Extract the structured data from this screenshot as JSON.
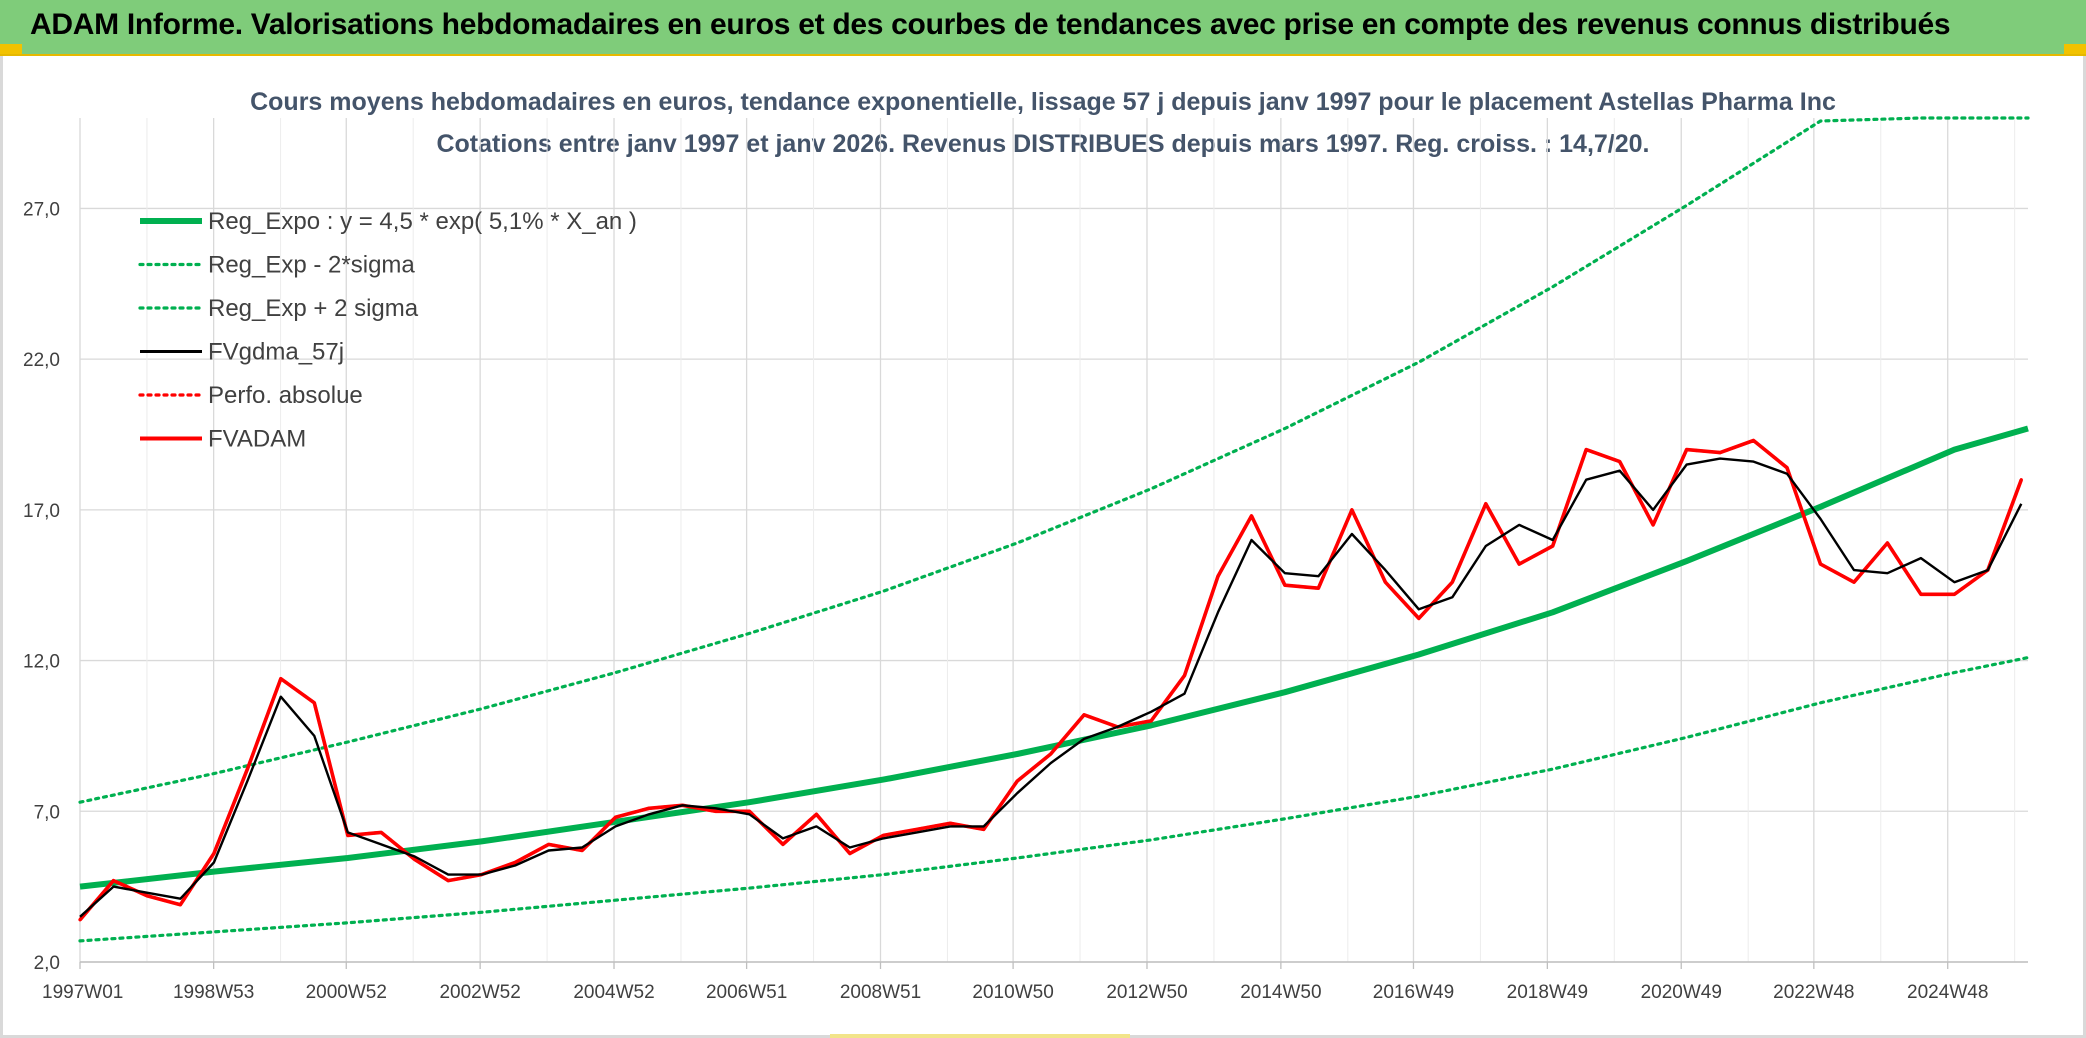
{
  "header": {
    "title": "ADAM Informe. Valorisations hebdomadaires en euros et des courbes de tendances avec prise en compte des revenus connus distribués"
  },
  "chart_data": {
    "type": "line",
    "title": "Cours moyens hebdomadaires en euros, tendance exponentielle, lissage 57 j depuis janv 1997 pour le placement Astellas Pharma Inc",
    "subtitle": "Cotations entre janv 1997 et janv 2026. Revenus DISTRIBUES depuis mars 1997. Reg. croiss. : 14,7/20.",
    "xlabel": "",
    "ylabel": "",
    "x_ticks": [
      "1997W01",
      "1998W53",
      "2000W52",
      "2002W52",
      "2004W52",
      "2006W51",
      "2008W51",
      "2010W50",
      "2012W50",
      "2014W50",
      "2016W49",
      "2018W49",
      "2020W49",
      "2022W48",
      "2024W48"
    ],
    "y_ticks": [
      "2,0",
      "7,0",
      "12,0",
      "17,0",
      "22,0",
      "27,0"
    ],
    "ylim": [
      2,
      30
    ],
    "xlim": [
      1997.0,
      2026.1
    ],
    "grid": true,
    "legend_position": "top-left",
    "series": [
      {
        "name": "Reg_Expo : y = 4,5 * exp( 5,1% *  X_an )",
        "style": "solid-thick",
        "color": "#00b050",
        "x": [
          1997.0,
          1999,
          2001,
          2003,
          2005,
          2007,
          2009,
          2011,
          2013,
          2015,
          2017,
          2019,
          2021,
          2023,
          2025,
          2026.1
        ],
        "values": [
          4.5,
          5.0,
          5.45,
          6.0,
          6.65,
          7.3,
          8.05,
          8.9,
          9.85,
          10.95,
          12.2,
          13.6,
          15.3,
          17.1,
          19.0,
          19.7
        ]
      },
      {
        "name": "Reg_Exp - 2*sigma",
        "style": "dotted",
        "color": "#00b050",
        "x": [
          1997.0,
          1999,
          2001,
          2003,
          2005,
          2007,
          2009,
          2011,
          2013,
          2015,
          2017,
          2019,
          2021,
          2023,
          2025,
          2026.1
        ],
        "values": [
          2.7,
          3.0,
          3.3,
          3.65,
          4.05,
          4.45,
          4.9,
          5.45,
          6.05,
          6.75,
          7.5,
          8.4,
          9.45,
          10.6,
          11.6,
          12.1
        ]
      },
      {
        "name": "Reg_Exp + 2 sigma",
        "style": "dotted",
        "color": "#00b050",
        "x": [
          1997.0,
          1999,
          2001,
          2003,
          2005,
          2007,
          2009,
          2011,
          2013,
          2015,
          2017,
          2019,
          2021,
          2023,
          2024.5,
          2026.1
        ],
        "values": [
          7.3,
          8.25,
          9.3,
          10.4,
          11.6,
          12.9,
          14.3,
          15.9,
          17.7,
          19.7,
          21.9,
          24.4,
          27.1,
          29.9,
          30.0,
          30.0
        ]
      },
      {
        "name": "FVgdma_57j",
        "style": "solid",
        "color": "#000000",
        "x": [
          1997.0,
          1997.5,
          1998.0,
          1998.5,
          1999.0,
          1999.5,
          2000.0,
          2000.5,
          2001.0,
          2001.5,
          2002.0,
          2002.5,
          2003.0,
          2003.5,
          2004.0,
          2004.5,
          2005.0,
          2005.5,
          2006.0,
          2006.5,
          2007.0,
          2007.5,
          2008.0,
          2008.5,
          2009.0,
          2009.5,
          2010.0,
          2010.5,
          2011.0,
          2011.5,
          2012.0,
          2012.5,
          2013.0,
          2013.5,
          2014.0,
          2014.5,
          2015.0,
          2015.5,
          2016.0,
          2016.5,
          2017.0,
          2017.5,
          2018.0,
          2018.5,
          2019.0,
          2019.5,
          2020.0,
          2020.5,
          2021.0,
          2021.5,
          2022.0,
          2022.5,
          2023.0,
          2023.5,
          2024.0,
          2024.5,
          2025.0,
          2025.5,
          2026.0
        ],
        "values": [
          3.5,
          4.5,
          4.3,
          4.1,
          5.3,
          8.0,
          10.8,
          9.5,
          6.3,
          5.9,
          5.5,
          4.9,
          4.9,
          5.2,
          5.7,
          5.8,
          6.5,
          6.9,
          7.2,
          7.1,
          6.9,
          6.1,
          6.5,
          5.8,
          6.1,
          6.3,
          6.5,
          6.5,
          7.6,
          8.6,
          9.4,
          9.8,
          10.3,
          10.9,
          13.6,
          16.0,
          14.9,
          14.8,
          16.2,
          15.0,
          13.7,
          14.1,
          15.8,
          16.5,
          16.0,
          18.0,
          18.3,
          17.0,
          18.5,
          18.7,
          18.6,
          18.2,
          16.7,
          15.0,
          14.9,
          15.4,
          14.6,
          15.0,
          17.2
        ]
      },
      {
        "name": "Perfo. absolue",
        "style": "dotted",
        "color": "#ff0000",
        "x": [
          1997.0,
          1997.5,
          1998.0,
          1998.5,
          1999.0,
          1999.5,
          2000.0,
          2000.5,
          2001.0,
          2001.5,
          2002.0,
          2002.5,
          2003.0,
          2003.5,
          2004.0,
          2004.5,
          2005.0,
          2005.5,
          2006.0,
          2006.5,
          2007.0,
          2007.5,
          2008.0,
          2008.5,
          2009.0,
          2009.5,
          2010.0,
          2010.5,
          2011.0,
          2011.5,
          2012.0,
          2012.5,
          2013.0,
          2013.5,
          2014.0,
          2014.5,
          2015.0,
          2015.5,
          2016.0,
          2016.5,
          2017.0,
          2017.5,
          2018.0,
          2018.5,
          2019.0,
          2019.5,
          2020.0,
          2020.5,
          2021.0,
          2021.5,
          2022.0,
          2022.5,
          2023.0,
          2023.5,
          2024.0,
          2024.5,
          2025.0,
          2025.5,
          2026.0
        ],
        "values": [
          3.4,
          4.7,
          4.2,
          3.9,
          5.6,
          8.4,
          11.4,
          10.6,
          6.2,
          6.3,
          5.4,
          4.7,
          4.9,
          5.3,
          5.9,
          5.7,
          6.8,
          7.1,
          7.2,
          7.0,
          7.0,
          5.9,
          6.9,
          5.6,
          6.2,
          6.4,
          6.6,
          6.4,
          8.0,
          8.9,
          10.2,
          9.8,
          10.0,
          11.5,
          14.8,
          16.8,
          14.5,
          14.4,
          17.0,
          14.6,
          13.4,
          14.6,
          17.2,
          15.2,
          15.8,
          19.0,
          18.6,
          16.5,
          19.0,
          18.9,
          19.3,
          18.4,
          15.2,
          14.6,
          15.9,
          14.2,
          14.2,
          15.0,
          18.0
        ]
      },
      {
        "name": "FVADAM",
        "style": "solid",
        "color": "#ff0000",
        "x": [
          1997.0,
          1997.5,
          1998.0,
          1998.5,
          1999.0,
          1999.5,
          2000.0,
          2000.5,
          2001.0,
          2001.5,
          2002.0,
          2002.5,
          2003.0,
          2003.5,
          2004.0,
          2004.5,
          2005.0,
          2005.5,
          2006.0,
          2006.5,
          2007.0,
          2007.5,
          2008.0,
          2008.5,
          2009.0,
          2009.5,
          2010.0,
          2010.5,
          2011.0,
          2011.5,
          2012.0,
          2012.5,
          2013.0,
          2013.5,
          2014.0,
          2014.5,
          2015.0,
          2015.5,
          2016.0,
          2016.5,
          2017.0,
          2017.5,
          2018.0,
          2018.5,
          2019.0,
          2019.5,
          2020.0,
          2020.5,
          2021.0,
          2021.5,
          2022.0,
          2022.5,
          2023.0,
          2023.5,
          2024.0,
          2024.5,
          2025.0,
          2025.5,
          2026.0
        ],
        "values": [
          3.4,
          4.7,
          4.2,
          3.9,
          5.6,
          8.4,
          11.4,
          10.6,
          6.2,
          6.3,
          5.4,
          4.7,
          4.9,
          5.3,
          5.9,
          5.7,
          6.8,
          7.1,
          7.2,
          7.0,
          7.0,
          5.9,
          6.9,
          5.6,
          6.2,
          6.4,
          6.6,
          6.4,
          8.0,
          8.9,
          10.2,
          9.8,
          10.0,
          11.5,
          14.8,
          16.8,
          14.5,
          14.4,
          17.0,
          14.6,
          13.4,
          14.6,
          17.2,
          15.2,
          15.8,
          19.0,
          18.6,
          16.5,
          19.0,
          18.9,
          19.3,
          18.4,
          15.2,
          14.6,
          15.9,
          14.2,
          14.2,
          15.0,
          18.0
        ]
      }
    ]
  }
}
